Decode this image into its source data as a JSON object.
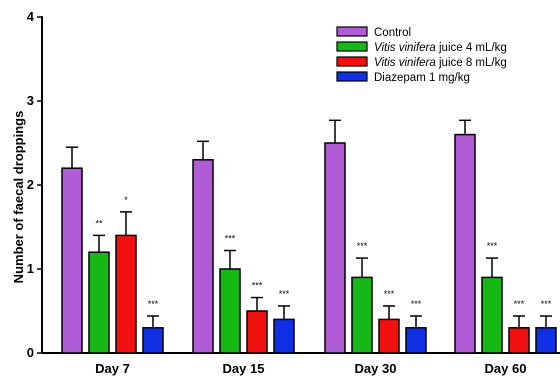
{
  "chart_data": {
    "type": "bar",
    "categories": [
      "Day 7",
      "Day 15",
      "Day 30",
      "Day 60"
    ],
    "ylabel": "Number of faecal droppings",
    "xlabel": "",
    "ylim": [
      0,
      4
    ],
    "yticks": [
      "0",
      "1",
      "2",
      "3",
      "4"
    ],
    "legend_position": "top-right",
    "series": [
      {
        "name": "Control",
        "legend_label_parts": [
          {
            "text": "Control",
            "italic": false
          }
        ],
        "color": "#b05cd6",
        "values": [
          2.2,
          2.3,
          2.5,
          2.6
        ],
        "errors": [
          0.25,
          0.22,
          0.27,
          0.17
        ],
        "significance": [
          "",
          "",
          "",
          ""
        ]
      },
      {
        "name": "Vitis vinifera juice 4 mL/kg",
        "legend_label_parts": [
          {
            "text": "Vitis vinifera",
            "italic": true
          },
          {
            "text": " juice 4 mL/kg",
            "italic": false
          }
        ],
        "color": "#16b816",
        "values": [
          1.2,
          1.0,
          0.9,
          0.9
        ],
        "errors": [
          0.2,
          0.22,
          0.23,
          0.23
        ],
        "significance": [
          "**",
          "***",
          "***",
          "***"
        ]
      },
      {
        "name": "Vitis vinifera juice 8 mL/kg",
        "legend_label_parts": [
          {
            "text": "Vitis vinifera",
            "italic": true
          },
          {
            "text": " juice 8 mL/kg",
            "italic": false
          }
        ],
        "color": "#f01010",
        "values": [
          1.4,
          0.5,
          0.4,
          0.3
        ],
        "errors": [
          0.28,
          0.16,
          0.16,
          0.14
        ],
        "significance": [
          "*",
          "***",
          "***",
          "***"
        ]
      },
      {
        "name": "Diazepam 1 mg/kg",
        "legend_label_parts": [
          {
            "text": "Diazepam 1 mg/kg",
            "italic": false
          }
        ],
        "color": "#1030e6",
        "values": [
          0.3,
          0.4,
          0.3,
          0.3
        ],
        "errors": [
          0.14,
          0.16,
          0.14,
          0.14
        ],
        "significance": [
          "***",
          "***",
          "***",
          "***"
        ]
      }
    ]
  }
}
